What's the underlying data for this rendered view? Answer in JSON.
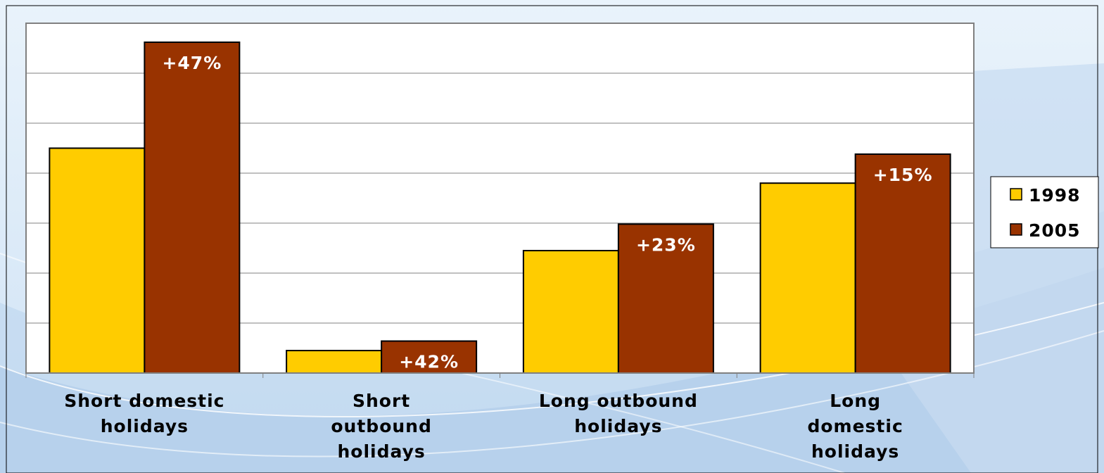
{
  "chart_data": {
    "type": "bar",
    "categories": [
      [
        "Short domestic",
        "holidays"
      ],
      [
        "Short",
        "outbound",
        "holidays"
      ],
      [
        "Long outbound",
        "holidays"
      ],
      [
        "Long",
        "domestic",
        "holidays"
      ]
    ],
    "series": [
      {
        "name": "1998",
        "values": [
          4.5,
          0.45,
          2.45,
          3.8
        ],
        "color": "#FFCC00"
      },
      {
        "name": "2005",
        "values": [
          6.62,
          0.64,
          2.98,
          4.38
        ],
        "color": "#993300"
      }
    ],
    "data_labels": [
      "+47%",
      "+42%",
      "+23%",
      "+15%"
    ],
    "ylim": [
      0,
      7
    ],
    "grid": true,
    "legend": "right",
    "title": "",
    "xlabel": "",
    "ylabel": ""
  }
}
